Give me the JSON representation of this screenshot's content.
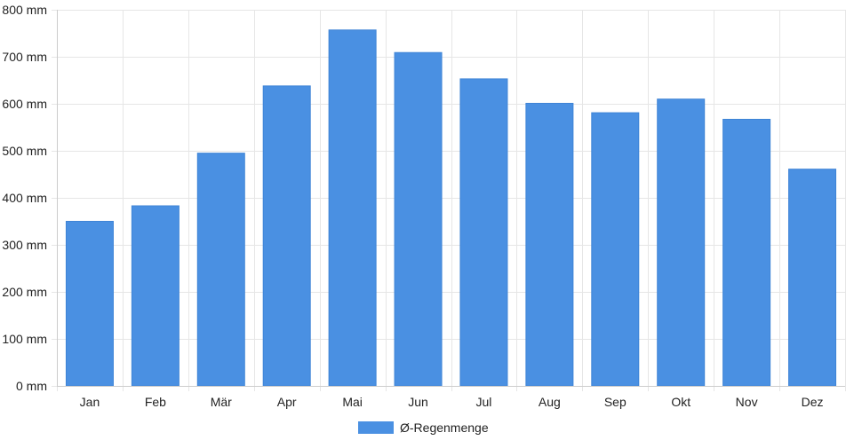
{
  "chart_data": {
    "type": "bar",
    "categories": [
      "Jan",
      "Feb",
      "Mär",
      "Apr",
      "Mai",
      "Jun",
      "Jul",
      "Aug",
      "Sep",
      "Okt",
      "Nov",
      "Dez"
    ],
    "series": [
      {
        "name": "Ø-Regenmenge",
        "values": [
          350,
          383,
          495,
          638,
          757,
          709,
          653,
          601,
          581,
          610,
          567,
          461
        ],
        "color": "#4a90e2"
      }
    ],
    "ylim": [
      0,
      800
    ],
    "y_ticks": [
      0,
      100,
      200,
      300,
      400,
      500,
      600,
      700,
      800
    ],
    "y_tick_suffix": " mm",
    "grid": true,
    "legend_position": "bottom-center"
  }
}
